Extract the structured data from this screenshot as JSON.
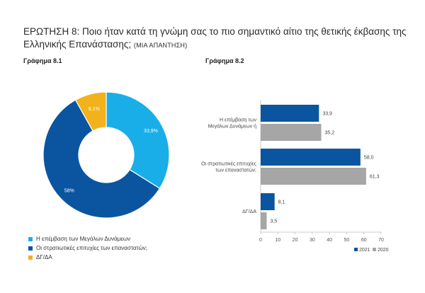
{
  "title": "ΕΡΩΤΗΣΗ 8: Ποιο ήταν κατά τη γνώμη σας το πιο σημαντικό αίτιο της θετικής έκβασης της Ελληνικής Επανάστασης;",
  "title_note": "(ΜΙΑ ΑΠΑΝΤΗΣΗ)",
  "figure1_label": "Γράφημα 8.1",
  "figure2_label": "Γράφημα 8.2",
  "colors": {
    "blue_light": "#1aaee8",
    "blue_dark": "#0b55a0",
    "yellow": "#f2b21b",
    "gray": "#a6a6a6"
  },
  "chart_data": [
    {
      "type": "pie",
      "title": "Γράφημα 8.1",
      "slices": [
        {
          "label": "Η επέμβαση των Μεγάλων Δυνάμεων",
          "value": 33.9,
          "display": "33,9%"
        },
        {
          "label": "Οι στρατιωτικές επιτυχίες των επαναστατών;",
          "value": 58,
          "display": "58%"
        },
        {
          "label": "ΔΓ/ΔΑ",
          "value": 8.1,
          "display": "8,1%"
        }
      ]
    },
    {
      "type": "bar",
      "orientation": "horizontal",
      "title": "Γράφημα 8.2",
      "categories": [
        [
          "Η επέμβαση των",
          "Μεγάλων Δυνάμεων ή"
        ],
        [
          "Οι στρατιωτικές επιτυχίες",
          "των επαναστατών;"
        ],
        [
          "ΔΓ/ΔΑ"
        ]
      ],
      "series": [
        {
          "name": "2021",
          "values": [
            33.9,
            58.0,
            8.1
          ],
          "labels": [
            "33,9",
            "58,0",
            "8,1"
          ]
        },
        {
          "name": "2020",
          "values": [
            35.2,
            61.3,
            3.5
          ],
          "labels": [
            "35,2",
            "61,3",
            "3,5"
          ]
        }
      ],
      "xlim": [
        0,
        70
      ],
      "xticks": [
        0,
        10,
        20,
        30,
        40,
        50,
        60,
        70
      ],
      "legend_position": "bottom-right"
    }
  ]
}
